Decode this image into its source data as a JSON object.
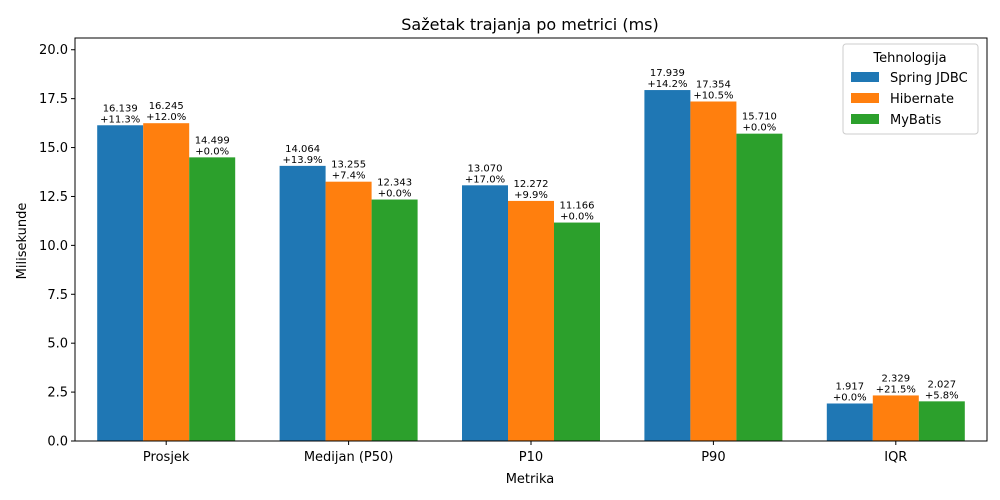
{
  "chart_data": {
    "type": "bar",
    "title": "Sažetak trajanja po metrici (ms)",
    "xlabel": "Metrika",
    "ylabel": "Milisekunde",
    "ylim": [
      0,
      20.6
    ],
    "yticks": [
      "0.0",
      "2.5",
      "5.0",
      "7.5",
      "10.0",
      "12.5",
      "15.0",
      "17.5",
      "20.0"
    ],
    "ytick_values": [
      0,
      2.5,
      5,
      7.5,
      10,
      12.5,
      15,
      17.5,
      20
    ],
    "categories": [
      "Prosjek",
      "Medijan (P50)",
      "P10",
      "P90",
      "IQR"
    ],
    "legend": {
      "title": "Tehnologija",
      "position": "top-right"
    },
    "grid": false,
    "series": [
      {
        "name": "Spring JDBC",
        "color": "#1f77b4",
        "values": [
          16.139,
          14.064,
          13.07,
          17.939,
          1.917
        ],
        "value_labels": [
          "16.139",
          "14.064",
          "13.070",
          "17.939",
          "1.917"
        ],
        "pct_labels": [
          "+11.3%",
          "+13.9%",
          "+17.0%",
          "+14.2%",
          "+0.0%"
        ]
      },
      {
        "name": "Hibernate",
        "color": "#ff7f0e",
        "values": [
          16.245,
          13.255,
          12.272,
          17.354,
          2.329
        ],
        "value_labels": [
          "16.245",
          "13.255",
          "12.272",
          "17.354",
          "2.329"
        ],
        "pct_labels": [
          "+12.0%",
          "+7.4%",
          "+9.9%",
          "+10.5%",
          "+21.5%"
        ]
      },
      {
        "name": "MyBatis",
        "color": "#2ca02c",
        "values": [
          14.499,
          12.343,
          11.166,
          15.71,
          2.027
        ],
        "value_labels": [
          "14.499",
          "12.343",
          "11.166",
          "15.710",
          "2.027"
        ],
        "pct_labels": [
          "+0.0%",
          "+0.0%",
          "+0.0%",
          "+0.0%",
          "+5.8%"
        ]
      }
    ]
  }
}
